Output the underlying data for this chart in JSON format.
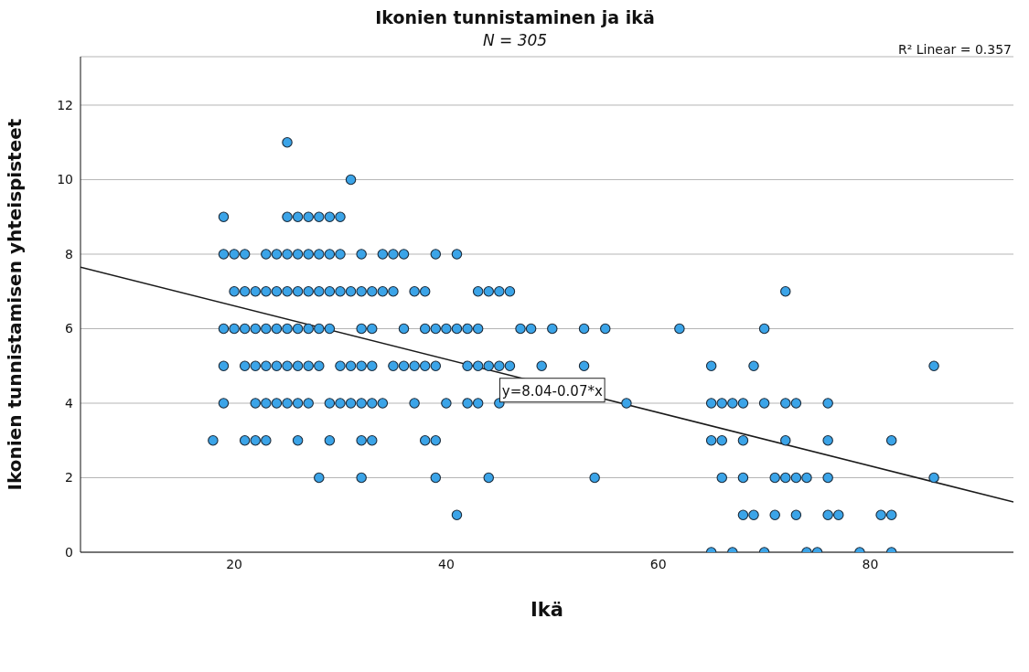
{
  "chart_data": {
    "type": "scatter",
    "title": "Ikonien tunnistaminen ja ikä",
    "subtitle": "N = 305",
    "xlabel": "Ikä",
    "ylabel": "Ikonien tunnistamisen yhteispisteet",
    "xlim": [
      5.5,
      93.5
    ],
    "xticks": [
      20,
      40,
      60,
      80
    ],
    "ylim": [
      0,
      13.3
    ],
    "yticks": [
      0,
      2,
      4,
      6,
      8,
      10,
      12
    ],
    "grid": "y",
    "annotations": [
      "R² Linear = 0.357",
      {
        "text": "y=8.04-0.07*x",
        "x": 50,
        "y": 4.35
      }
    ],
    "series": [
      {
        "marker": "circle",
        "color": "#3ba4e8",
        "x": [
          25,
          31,
          19,
          25,
          26,
          27,
          28,
          29,
          30,
          19,
          20,
          21,
          23,
          24,
          25,
          26,
          27,
          28,
          29,
          30,
          32,
          34,
          35,
          36,
          39,
          41,
          20,
          21,
          22,
          23,
          24,
          25,
          26,
          27,
          28,
          29,
          30,
          31,
          32,
          33,
          34,
          35,
          37,
          38,
          43,
          44,
          45,
          46,
          72,
          19,
          20,
          21,
          22,
          23,
          24,
          25,
          26,
          27,
          28,
          29,
          32,
          33,
          36,
          38,
          39,
          40,
          41,
          42,
          43,
          47,
          48,
          50,
          53,
          55,
          62,
          70,
          19,
          21,
          22,
          23,
          24,
          25,
          26,
          27,
          28,
          30,
          31,
          32,
          33,
          35,
          36,
          37,
          38,
          39,
          42,
          43,
          44,
          45,
          46,
          49,
          53,
          65,
          69,
          86,
          19,
          22,
          23,
          24,
          25,
          26,
          27,
          29,
          30,
          31,
          32,
          33,
          34,
          37,
          40,
          42,
          43,
          45,
          57,
          65,
          66,
          67,
          68,
          70,
          72,
          73,
          76,
          18,
          21,
          22,
          23,
          26,
          29,
          32,
          33,
          38,
          39,
          65,
          66,
          68,
          72,
          76,
          82,
          28,
          32,
          39,
          44,
          54,
          66,
          68,
          71,
          72,
          73,
          74,
          76,
          86,
          41,
          68,
          69,
          71,
          73,
          76,
          77,
          81,
          82,
          65,
          67,
          70,
          74,
          75,
          79,
          82
        ],
        "values": [
          11,
          10,
          9,
          9,
          9,
          9,
          9,
          9,
          9,
          8,
          8,
          8,
          8,
          8,
          8,
          8,
          8,
          8,
          8,
          8,
          8,
          8,
          8,
          8,
          8,
          8,
          7,
          7,
          7,
          7,
          7,
          7,
          7,
          7,
          7,
          7,
          7,
          7,
          7,
          7,
          7,
          7,
          7,
          7,
          7,
          7,
          7,
          7,
          7,
          6,
          6,
          6,
          6,
          6,
          6,
          6,
          6,
          6,
          6,
          6,
          6,
          6,
          6,
          6,
          6,
          6,
          6,
          6,
          6,
          6,
          6,
          6,
          6,
          6,
          6,
          6,
          5,
          5,
          5,
          5,
          5,
          5,
          5,
          5,
          5,
          5,
          5,
          5,
          5,
          5,
          5,
          5,
          5,
          5,
          5,
          5,
          5,
          5,
          5,
          5,
          5,
          5,
          5,
          5,
          4,
          4,
          4,
          4,
          4,
          4,
          4,
          4,
          4,
          4,
          4,
          4,
          4,
          4,
          4,
          4,
          4,
          4,
          4,
          4,
          4,
          4,
          4,
          4,
          4,
          4,
          4,
          3,
          3,
          3,
          3,
          3,
          3,
          3,
          3,
          3,
          3,
          3,
          3,
          3,
          3,
          3,
          3,
          2,
          2,
          2,
          2,
          2,
          2,
          2,
          2,
          2,
          2,
          2,
          2,
          2,
          1,
          1,
          1,
          1,
          1,
          1,
          1,
          1,
          1,
          0,
          0,
          0,
          0,
          0,
          0,
          0
        ]
      },
      {
        "type": "line",
        "color": "#1a1a1a",
        "line_style": "solid",
        "x": [
          5.5,
          93.5
        ],
        "values": [
          7.65,
          1.35
        ]
      }
    ]
  }
}
